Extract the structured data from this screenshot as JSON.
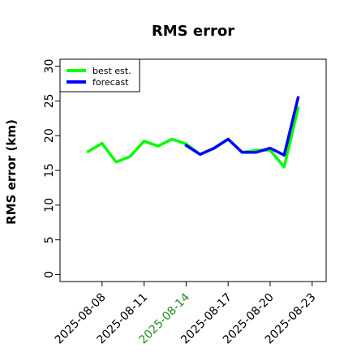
{
  "chart_data": {
    "type": "line",
    "title": "RMS error",
    "ylabel": "RMS error (km)",
    "xlabel": "",
    "ylim": [
      -1,
      31
    ],
    "xlim": [
      "2025-08-05",
      "2025-08-24"
    ],
    "yticks": [
      0,
      5,
      10,
      15,
      20,
      25,
      30
    ],
    "xticks": [
      {
        "value": "2025-08-08",
        "label": "2025-08-08",
        "color": "#000000"
      },
      {
        "value": "2025-08-11",
        "label": "2025-08-11",
        "color": "#000000"
      },
      {
        "value": "2025-08-14",
        "label": "2025-08-14",
        "color": "#228B22"
      },
      {
        "value": "2025-08-17",
        "label": "2025-08-17",
        "color": "#000000"
      },
      {
        "value": "2025-08-20",
        "label": "2025-08-20",
        "color": "#000000"
      },
      {
        "value": "2025-08-23",
        "label": "2025-08-23",
        "color": "#000000"
      }
    ],
    "grid": false,
    "legend_position": "top-left",
    "series": [
      {
        "name": "best est.",
        "color": "#00ff00",
        "points": [
          {
            "x": "2025-08-07",
            "y": 17.7
          },
          {
            "x": "2025-08-08",
            "y": 18.9
          },
          {
            "x": "2025-08-09",
            "y": 16.2
          },
          {
            "x": "2025-08-10",
            "y": 17.0
          },
          {
            "x": "2025-08-11",
            "y": 19.2
          },
          {
            "x": "2025-08-12",
            "y": 18.5
          },
          {
            "x": "2025-08-13",
            "y": 19.5
          },
          {
            "x": "2025-08-14",
            "y": 18.8
          },
          {
            "x": "2025-08-15",
            "y": 17.3
          },
          {
            "x": "2025-08-16",
            "y": 18.2
          },
          {
            "x": "2025-08-17",
            "y": 19.5
          },
          {
            "x": "2025-08-18",
            "y": 17.6
          },
          {
            "x": "2025-08-19",
            "y": 17.9
          },
          {
            "x": "2025-08-20",
            "y": 17.9
          },
          {
            "x": "2025-08-21",
            "y": 15.5
          },
          {
            "x": "2025-08-22",
            "y": 24.0
          }
        ]
      },
      {
        "name": "forecast",
        "color": "#0000ff",
        "points": [
          {
            "x": "2025-08-14",
            "y": 18.6
          },
          {
            "x": "2025-08-15",
            "y": 17.3
          },
          {
            "x": "2025-08-16",
            "y": 18.2
          },
          {
            "x": "2025-08-17",
            "y": 19.5
          },
          {
            "x": "2025-08-18",
            "y": 17.6
          },
          {
            "x": "2025-08-19",
            "y": 17.6
          },
          {
            "x": "2025-08-20",
            "y": 18.2
          },
          {
            "x": "2025-08-21",
            "y": 17.2
          },
          {
            "x": "2025-08-22",
            "y": 25.5
          }
        ]
      }
    ]
  }
}
